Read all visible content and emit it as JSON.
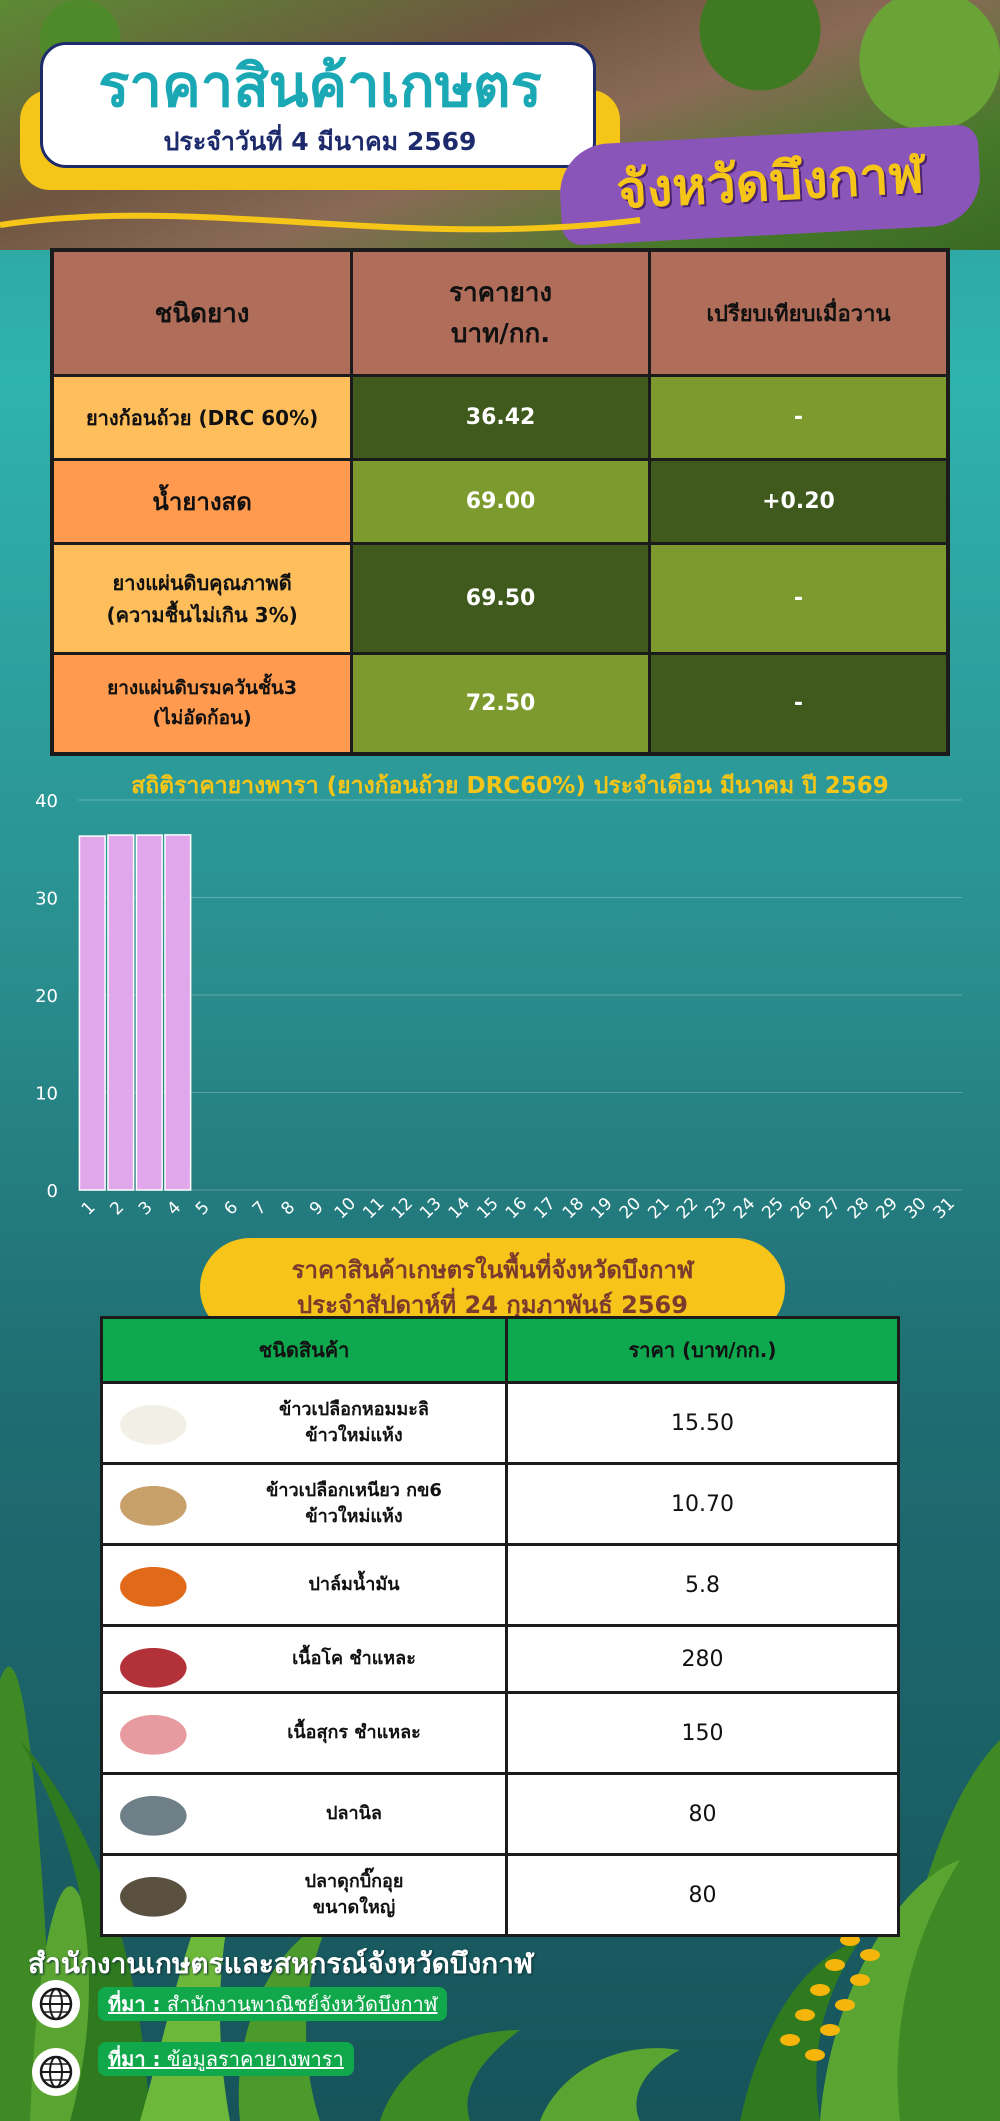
{
  "header": {
    "title": "ราคาสินค้าเกษตร",
    "date_line": "ประจำวันที่ 4 มีนาคม 2569",
    "province": "จังหวัดบึงกาฬ"
  },
  "rubber_table": {
    "headers": [
      "ชนิดยาง",
      "ราคายาง\nบาท/กก.",
      "เปรียบเทียบเมื่อวาน"
    ],
    "rows": [
      {
        "type": "ยางก้อนถ้วย (DRC 60%)",
        "price": "36.42",
        "change": "-"
      },
      {
        "type": "น้ำยางสด",
        "price": "69.00",
        "change": "+0.20"
      },
      {
        "type": "ยางแผ่นดิบคุณภาพดี\n(ความชื้นไม่เกิน 3%)",
        "price": "69.50",
        "change": "-"
      },
      {
        "type": "ยางแผ่นดิบรมควันชั้น3\n(ไม่อัดก้อน)",
        "price": "72.50",
        "change": "-"
      }
    ]
  },
  "chart_data": {
    "type": "bar",
    "title": "สถิติราคายางพารา (ยางก้อนถ้วย DRC60%) ประจำเดือน มีนาคม ปี 2569",
    "categories": [
      "1",
      "2",
      "3",
      "4",
      "5",
      "6",
      "7",
      "8",
      "9",
      "10",
      "11",
      "12",
      "13",
      "14",
      "15",
      "16",
      "17",
      "18",
      "19",
      "20",
      "21",
      "22",
      "23",
      "24",
      "25",
      "26",
      "27",
      "28",
      "29",
      "30",
      "31"
    ],
    "values": [
      36.3,
      36.4,
      36.4,
      36.42,
      null,
      null,
      null,
      null,
      null,
      null,
      null,
      null,
      null,
      null,
      null,
      null,
      null,
      null,
      null,
      null,
      null,
      null,
      null,
      null,
      null,
      null,
      null,
      null,
      null,
      null,
      null
    ],
    "ylim": [
      0,
      40
    ],
    "yticks": [
      0,
      10,
      20,
      30,
      40
    ],
    "grid": true,
    "bar_color": "#e0a8ea"
  },
  "produce": {
    "heading_line1": "ราคาสินค้าเกษตรในพื้นที่จังหวัดบึงกาฬ",
    "heading_line2": "ประจำสัปดาห์ที่ 24 กุมภาพันธ์ 2569",
    "col_product": "ชนิดสินค้า",
    "col_price": "ราคา (บาท/กก.)",
    "rows": [
      {
        "name": "ข้าวเปลือกหอมมะลิ\nข้าวใหม่แห้ง",
        "price": "15.50",
        "icon": "rice-jasmine-icon",
        "color": "#f2f0e6"
      },
      {
        "name": "ข้าวเปลือกเหนียว กข6\nข้าวใหม่แห้ง",
        "price": "10.70",
        "icon": "rice-sticky-icon",
        "color": "#c8a16a"
      },
      {
        "name": "ปาล์มน้ำมัน",
        "price": "5.8",
        "icon": "oil-palm-icon",
        "color": "#e06a1a"
      },
      {
        "name": "เนื้อโค ชำแหละ",
        "price": "280",
        "icon": "beef-icon",
        "color": "#b3323a"
      },
      {
        "name": "เนื้อสุกร ชำแหละ",
        "price": "150",
        "icon": "pork-icon",
        "color": "#e79aa0"
      },
      {
        "name": "ปลานิล",
        "price": "80",
        "icon": "tilapia-icon",
        "color": "#6f7f87"
      },
      {
        "name": "ปลาดุกบิ๊กอุย\nขนาดใหญ่",
        "price": "80",
        "icon": "catfish-icon",
        "color": "#5a5040"
      }
    ]
  },
  "footer": {
    "office": "สำนักงานเกษตรและสหกรณ์จังหวัดบึงกาฬ",
    "sources": [
      {
        "prefix": "ที่มา :",
        "text": "สำนักงานพาณิชย์จังหวัดบึงกาฬ"
      },
      {
        "prefix": "ที่มา :",
        "text": "ข้อมูลราคายางพารา"
      }
    ]
  }
}
